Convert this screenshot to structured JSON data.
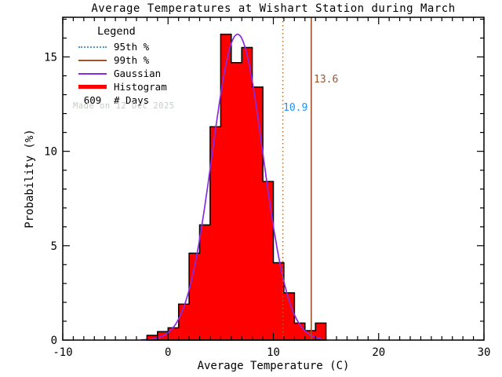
{
  "title": "Average Temperatures at Wishart Station during March",
  "watermark": "Made on 12 Dec 2025",
  "legend": {
    "title": "Legend",
    "items": [
      {
        "label": "95th %",
        "style": "dotted",
        "color": "#4f94cd"
      },
      {
        "label": "99th %",
        "style": "solid",
        "color": "#a0522d"
      },
      {
        "label": "Gaussian",
        "style": "solid",
        "color": "#8a2be2"
      },
      {
        "label": "Histogram",
        "style": "thick",
        "color": "#ff0000"
      }
    ],
    "count_value": "609",
    "count_label": "# Days"
  },
  "annotations": {
    "p95": {
      "text": "10.9",
      "color": "#1e90ff"
    },
    "p99": {
      "text": "13.6",
      "color": "#a0522d"
    }
  },
  "colors": {
    "histogram_fill": "#ff0000",
    "histogram_outline": "#000000",
    "gaussian": "#8a2be2",
    "p95_line": "#b4651e",
    "p99_line": "#a0522d",
    "watermark": "#c6ccc6",
    "axis": "#000000"
  },
  "chart_data": {
    "type": "bar",
    "title": "Average Temperatures at Wishart Station during March",
    "xlabel": "Average Temperature (C)",
    "ylabel": "Probability (%)",
    "xlim": [
      -10,
      30
    ],
    "ylim": [
      0,
      17.1
    ],
    "xticks": [
      -10,
      0,
      10,
      20,
      30
    ],
    "yticks": [
      0,
      5,
      10,
      15
    ],
    "minor_tick_step_x": 1,
    "minor_tick_step_y": 1,
    "grid": false,
    "legend_position": "top-left",
    "bin_start": -2,
    "bin_width": 1,
    "categories": [
      "-2 to -1",
      "-1 to 0",
      "0 to 1",
      "1 to 2",
      "2 to 3",
      "3 to 4",
      "4 to 5",
      "5 to 6",
      "6 to 7",
      "7 to 8",
      "8 to 9",
      "9 to 10",
      "10 to 11",
      "11 to 12",
      "12 to 13",
      "13 to 14",
      "14 to 15"
    ],
    "values": [
      0.25,
      0.45,
      0.65,
      1.9,
      4.6,
      6.1,
      11.3,
      16.2,
      14.7,
      15.5,
      13.4,
      8.4,
      4.1,
      2.5,
      0.9,
      0.5,
      0.9
    ],
    "gaussian": {
      "mean": 6.6,
      "sigma": 2.42,
      "peak": 16.2,
      "x_start": -2.6,
      "x_end": 14.6
    },
    "percentile_95": 10.9,
    "percentile_99": 13.6,
    "n_days": 609
  }
}
